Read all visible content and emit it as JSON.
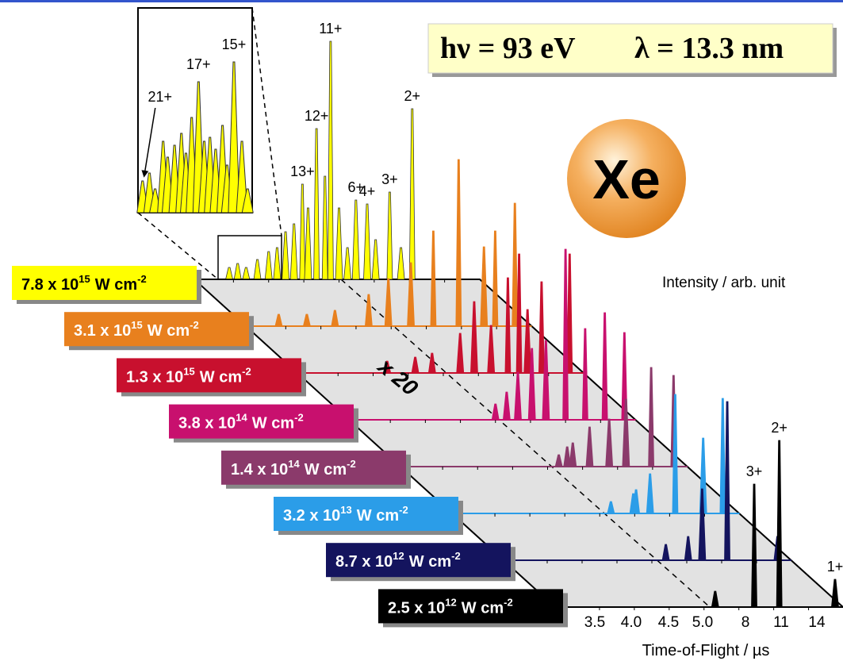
{
  "chart_data": {
    "type": "waterfall",
    "photon_energy": "hν = 93 eV",
    "wavelength": "λ = 13.3 nm",
    "element": "Xe",
    "y_label": "Intensity / arb. unit",
    "x_label": "Time-of-Flight / µs",
    "scale_note": "x 20",
    "xticks": [
      "3.5",
      "4.0",
      "4.5",
      "5.0",
      "8",
      "11",
      "14"
    ],
    "series": [
      {
        "name": "7.8 x 10",
        "exponent": "15",
        "unit": "W cm",
        "unit_exponent": "-2",
        "color": "#ffff00",
        "text_color": "#000000",
        "peaks": [
          [
            0.11,
            15
          ],
          [
            0.14,
            20
          ],
          [
            0.17,
            15
          ],
          [
            0.21,
            25
          ],
          [
            0.25,
            35
          ],
          [
            0.28,
            40
          ],
          [
            0.31,
            60
          ],
          [
            0.34,
            70
          ],
          [
            0.37,
            120
          ],
          [
            0.39,
            90
          ],
          [
            0.42,
            190
          ],
          [
            0.45,
            130
          ],
          [
            0.47,
            300
          ],
          [
            0.5,
            90
          ],
          [
            0.53,
            40
          ],
          [
            0.56,
            100
          ],
          [
            0.6,
            95
          ],
          [
            0.63,
            50
          ],
          [
            0.68,
            110
          ],
          [
            0.72,
            40
          ],
          [
            0.76,
            215
          ]
        ],
        "peak_labels": [
          {
            "text": "13+",
            "peak": 8
          },
          {
            "text": "12+",
            "peak": 10
          },
          {
            "text": "11+",
            "peak": 12
          },
          {
            "text": "6+",
            "peak": 15
          },
          {
            "text": "4+",
            "peak": 16
          },
          {
            "text": "3+",
            "peak": 18
          },
          {
            "text": "2+",
            "peak": 20
          }
        ]
      },
      {
        "name": "3.1 x 10",
        "exponent": "15",
        "unit": "W cm",
        "unit_exponent": "-2",
        "color": "#e8801e",
        "text_color": "#ffffff",
        "peaks": [
          [
            0.1,
            15
          ],
          [
            0.2,
            15
          ],
          [
            0.3,
            20
          ],
          [
            0.42,
            40
          ],
          [
            0.49,
            60
          ],
          [
            0.57,
            80
          ],
          [
            0.65,
            120
          ],
          [
            0.74,
            210
          ],
          [
            0.83,
            100
          ],
          [
            0.87,
            120
          ],
          [
            0.94,
            155
          ]
        ]
      },
      {
        "name": "1.3 x 10",
        "exponent": "15",
        "unit": "W cm",
        "unit_exponent": "-2",
        "color": "#c8102e",
        "text_color": "#ffffff",
        "peaks": [
          [
            0.3,
            15
          ],
          [
            0.4,
            20
          ],
          [
            0.46,
            25
          ],
          [
            0.56,
            50
          ],
          [
            0.61,
            90
          ],
          [
            0.67,
            60
          ],
          [
            0.73,
            120
          ],
          [
            0.77,
            150
          ],
          [
            0.8,
            80
          ],
          [
            0.85,
            115
          ],
          [
            0.95,
            150
          ]
        ]
      },
      {
        "name": "3.8 x 10",
        "exponent": "14",
        "unit": "W cm",
        "unit_exponent": "-2",
        "color": "#c8106e",
        "text_color": "#ffffff",
        "peaks": [
          [
            0.5,
            20
          ],
          [
            0.54,
            35
          ],
          [
            0.58,
            60
          ],
          [
            0.63,
            90
          ],
          [
            0.68,
            100
          ],
          [
            0.75,
            215
          ],
          [
            0.82,
            115
          ],
          [
            0.89,
            135
          ],
          [
            0.96,
            110
          ]
        ]
      },
      {
        "name": "1.4 x 10",
        "exponent": "14",
        "unit": "W cm",
        "unit_exponent": "-2",
        "color": "#8b3a6b",
        "text_color": "#ffffff",
        "peaks": [
          [
            0.54,
            15
          ],
          [
            0.57,
            25
          ],
          [
            0.59,
            30
          ],
          [
            0.65,
            50
          ],
          [
            0.72,
            60
          ],
          [
            0.78,
            85
          ],
          [
            0.87,
            125
          ],
          [
            0.95,
            115
          ]
        ]
      },
      {
        "name": "3.2 x 10",
        "exponent": "13",
        "unit": "W cm",
        "unit_exponent": "-2",
        "color": "#2b9de8",
        "text_color": "#ffffff",
        "peaks": [
          [
            0.54,
            15
          ],
          [
            0.62,
            25
          ],
          [
            0.63,
            30
          ],
          [
            0.68,
            50
          ],
          [
            0.77,
            150
          ],
          [
            0.87,
            95
          ],
          [
            0.94,
            145
          ]
        ]
      },
      {
        "name": "8.7 x 10",
        "exponent": "12",
        "unit": "W cm",
        "unit_exponent": "-2",
        "color": "#14145e",
        "text_color": "#ffffff",
        "peaks": [
          [
            0.55,
            20
          ],
          [
            0.63,
            30
          ],
          [
            0.68,
            90
          ],
          [
            0.77,
            200
          ],
          [
            0.95,
            30
          ]
        ]
      },
      {
        "name": "2.5 x 10",
        "exponent": "12",
        "unit": "W cm",
        "unit_exponent": "-2",
        "color": "#000000",
        "text_color": "#ffffff",
        "peaks": [
          [
            0.54,
            20
          ],
          [
            0.68,
            155
          ],
          [
            0.77,
            210
          ],
          [
            0.97,
            35
          ]
        ],
        "peak_labels": [
          {
            "text": "3+",
            "peak": 1
          },
          {
            "text": "2+",
            "peak": 2
          },
          {
            "text": "1+",
            "peak": 3
          }
        ]
      }
    ],
    "inset": {
      "color": "#ffff00",
      "peaks": [
        [
          0.04,
          40
        ],
        [
          0.1,
          50
        ],
        [
          0.15,
          30
        ],
        [
          0.22,
          90
        ],
        [
          0.26,
          70
        ],
        [
          0.32,
          85
        ],
        [
          0.38,
          100
        ],
        [
          0.42,
          75
        ],
        [
          0.47,
          120
        ],
        [
          0.53,
          165
        ],
        [
          0.58,
          90
        ],
        [
          0.63,
          95
        ],
        [
          0.68,
          80
        ],
        [
          0.74,
          110
        ],
        [
          0.78,
          60
        ],
        [
          0.84,
          190
        ],
        [
          0.91,
          90
        ],
        [
          0.96,
          30
        ]
      ],
      "peak_labels": [
        {
          "text": "21+",
          "peak": 0
        },
        {
          "text": "17+",
          "peak": 9
        },
        {
          "text": "15+",
          "peak": 15
        }
      ]
    }
  }
}
